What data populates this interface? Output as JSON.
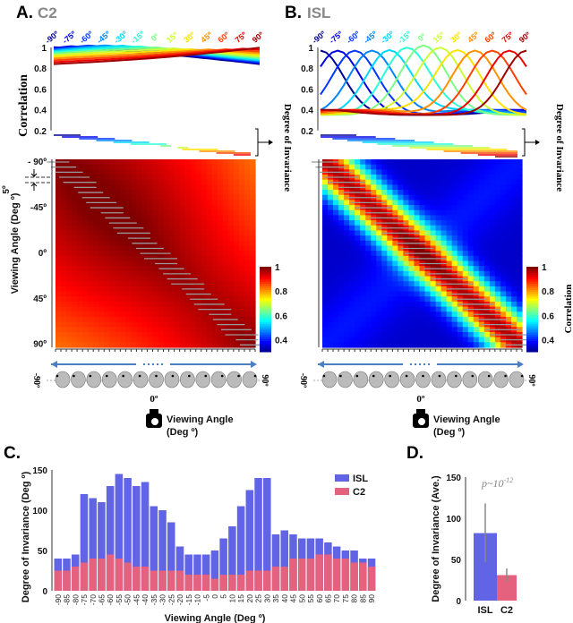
{
  "panel_a": {
    "letter": "A.",
    "title": "C2",
    "curve_labels": [
      "-90º",
      "-75º",
      "-60º",
      "-45º",
      "-30º",
      "-15º",
      "0º",
      "15º",
      "30º",
      "45º",
      "60º",
      "75º",
      "90º"
    ],
    "ylabel": "Correlation",
    "yticks": [
      "1",
      "0.8",
      "0.6",
      "0.4",
      "0.2"
    ],
    "side_label": "Degree of Invariance",
    "heatmap_yticks": [
      "- 90º",
      "-45º",
      "0º",
      "45º",
      "90º"
    ],
    "heatmap_ylabel": "Viewing Angle (Deg º)",
    "step_label": "5º",
    "colorbar_ticks": [
      "1",
      "0.8",
      "0.6",
      "0.4"
    ],
    "colorbar_label": "",
    "face_left": "-90º",
    "face_right": "90º",
    "camera_angle": "0º",
    "xlabel_line1": "Viewing Angle",
    "xlabel_line2": "(Deg º)"
  },
  "panel_b": {
    "letter": "B.",
    "title": "ISL",
    "curve_labels": [
      "-90º",
      "-75º",
      "-60º",
      "-45º",
      "-30º",
      "-15º",
      "0º",
      "15º",
      "30º",
      "45º",
      "60º",
      "75º",
      "90º"
    ],
    "yticks": [
      "1",
      "0.8",
      "0.6",
      "0.4",
      "0.2"
    ],
    "side_label": "Degree of Invariance",
    "colorbar_ticks": [
      "1",
      "0.8",
      "0.6",
      "0.4"
    ],
    "colorbar_label": "Correlation",
    "face_left": "-90º",
    "face_right": "90º",
    "camera_angle": "0º",
    "xlabel_line1": "Viewing Angle",
    "xlabel_line2": "(Deg º)"
  },
  "colors": {
    "isl": "#6264e6",
    "c2": "#e4627e",
    "error": "#888888"
  },
  "chart_data": [
    {
      "panel": "C.",
      "type": "bar",
      "stacked": "overlay",
      "xlabel": "Viewing Angle (Deg º)",
      "ylabel": "Degree of Invariance (Deg º)",
      "ylim": [
        0,
        150
      ],
      "yticks": [
        "0",
        "50",
        "100",
        "150"
      ],
      "legend": "top-right",
      "categories": [
        "-90",
        "-85",
        "-80",
        "-75",
        "-70",
        "-65",
        "-60",
        "-55",
        "-50",
        "-45",
        "-40",
        "-35",
        "-30",
        "-25",
        "-20",
        "-15",
        "-10",
        "-5",
        "0",
        "5",
        "10",
        "15",
        "20",
        "25",
        "30",
        "35",
        "40",
        "45",
        "50",
        "55",
        "60",
        "65",
        "70",
        "75",
        "80",
        "85",
        "90"
      ],
      "series": [
        {
          "name": "ISL",
          "values": [
            40,
            40,
            45,
            120,
            115,
            110,
            130,
            145,
            140,
            130,
            135,
            105,
            100,
            85,
            55,
            45,
            45,
            45,
            50,
            65,
            80,
            105,
            125,
            140,
            140,
            70,
            75,
            70,
            65,
            65,
            65,
            60,
            55,
            50,
            50,
            40,
            40
          ]
        },
        {
          "name": "C2",
          "values": [
            25,
            25,
            30,
            35,
            40,
            40,
            45,
            40,
            35,
            30,
            30,
            25,
            25,
            25,
            25,
            20,
            20,
            20,
            15,
            20,
            20,
            20,
            25,
            25,
            25,
            30,
            30,
            40,
            40,
            40,
            45,
            45,
            40,
            40,
            35,
            35,
            30
          ]
        }
      ]
    },
    {
      "panel": "D.",
      "type": "bar",
      "ylabel": "Degree of Invariance (Ave.)",
      "ylim": [
        0,
        150
      ],
      "yticks": [
        "0",
        "50",
        "100",
        "150"
      ],
      "annotation": "p~10",
      "annotation_exp": "-12",
      "categories": [
        "ISL",
        "C2"
      ],
      "values": [
        82,
        31
      ],
      "error_low": [
        47,
        23
      ],
      "error_high": [
        118,
        39
      ]
    }
  ]
}
